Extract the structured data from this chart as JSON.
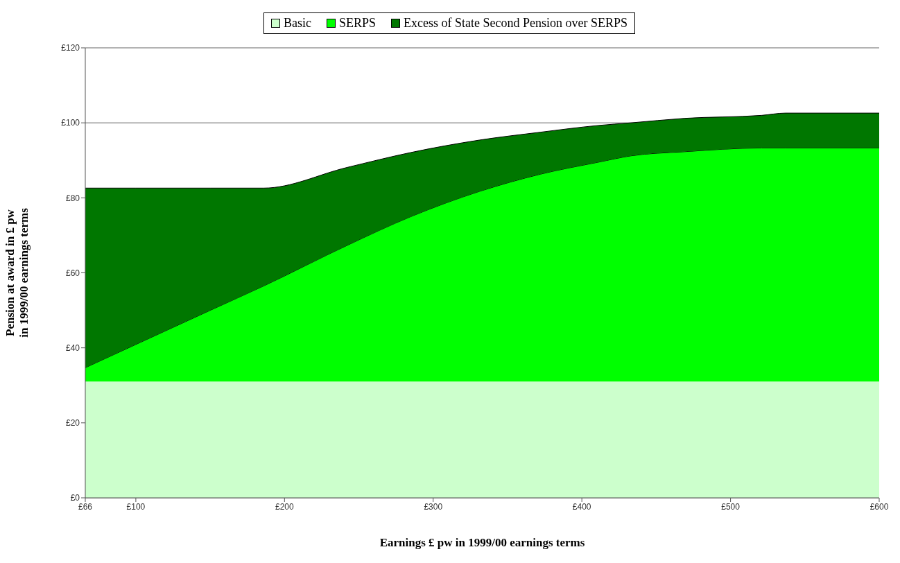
{
  "chart_data": {
    "type": "area",
    "stacked": true,
    "xlabel": "Earnings £ pw in 1999/00 earnings terms",
    "ylabel": "Pension at award in £ pw\nin 1999/00 earnings terms",
    "x": [
      66,
      100,
      150,
      186,
      242,
      285,
      331,
      372,
      411,
      433,
      469,
      521,
      537,
      600
    ],
    "series": [
      {
        "name": "Basic",
        "color": "#ccffcc",
        "values": [
          31,
          31,
          31,
          31,
          31,
          31,
          31,
          31,
          31,
          31,
          31,
          31,
          31,
          31
        ]
      },
      {
        "name": "SERPS",
        "color": "#00ff00",
        "values": [
          3.7,
          9.9,
          19,
          25.5,
          36.3,
          44,
          50.7,
          55.3,
          58.5,
          60.2,
          61.3,
          62.3,
          62.3,
          62.3
        ]
      },
      {
        "name": "Excess of State Second Pension over SERPS",
        "color": "#007700",
        "values": [
          47.9,
          41.7,
          32.6,
          26.1,
          20.8,
          17.1,
          13.7,
          11.2,
          9.8,
          8.8,
          8.9,
          8.7,
          9.3,
          9.3
        ]
      }
    ],
    "xlim": [
      66,
      600
    ],
    "xticks": [
      {
        "value": 66,
        "label": "£66"
      },
      {
        "value": 100,
        "label": "£100"
      },
      {
        "value": 200,
        "label": "£200"
      },
      {
        "value": 300,
        "label": "£300"
      },
      {
        "value": 400,
        "label": "£400"
      },
      {
        "value": 500,
        "label": "£500"
      },
      {
        "value": 600,
        "label": "£600"
      }
    ],
    "ylim": [
      0,
      120
    ],
    "yticks": [
      {
        "value": 0,
        "label": "£0"
      },
      {
        "value": 20,
        "label": "£20"
      },
      {
        "value": 40,
        "label": "£40"
      },
      {
        "value": 60,
        "label": "£60"
      },
      {
        "value": 80,
        "label": "£80"
      },
      {
        "value": 100,
        "label": "£100"
      },
      {
        "value": 120,
        "label": "£120"
      }
    ],
    "grid": "y",
    "legend": "top"
  }
}
